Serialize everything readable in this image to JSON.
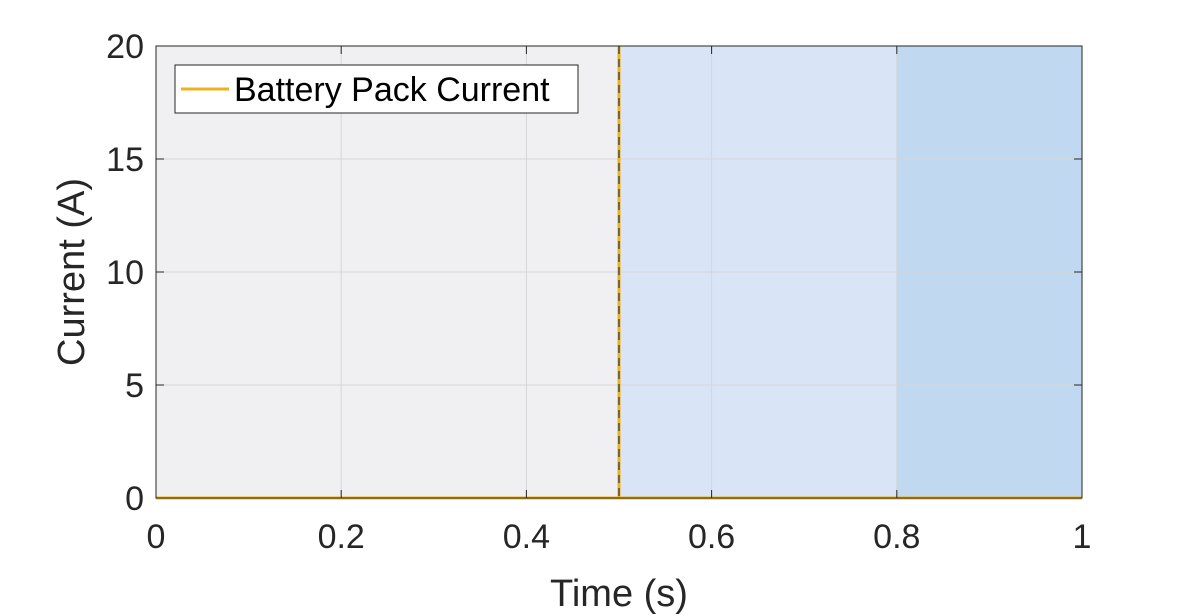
{
  "chart_data": {
    "type": "line",
    "xlabel": "Time (s)",
    "ylabel": "Current (A)",
    "xlim": [
      0,
      1
    ],
    "ylim": [
      0,
      20
    ],
    "xticks": [
      "0",
      "0.2",
      "0.4",
      "0.6",
      "0.8",
      "1"
    ],
    "yticks": [
      "0",
      "5",
      "10",
      "15",
      "20"
    ],
    "grid": true,
    "legend_position": "top-left",
    "series": [
      {
        "name": "Battery Pack Current",
        "color": "#EDB120",
        "x": [
          0,
          0.5,
          0.5,
          0.5,
          1
        ],
        "y": [
          0,
          0,
          20,
          0,
          0
        ]
      }
    ],
    "shaded_regions": [
      {
        "x": [
          0,
          0.5
        ],
        "color": "#F0F0F2"
      },
      {
        "x": [
          0.5,
          0.8
        ],
        "color": "#D9E5F6"
      },
      {
        "x": [
          0.8,
          1
        ],
        "color": "#C0D9F1"
      }
    ],
    "vertical_markers": [
      {
        "x": 0.5,
        "style": "dashed",
        "color": "#333333"
      }
    ]
  }
}
